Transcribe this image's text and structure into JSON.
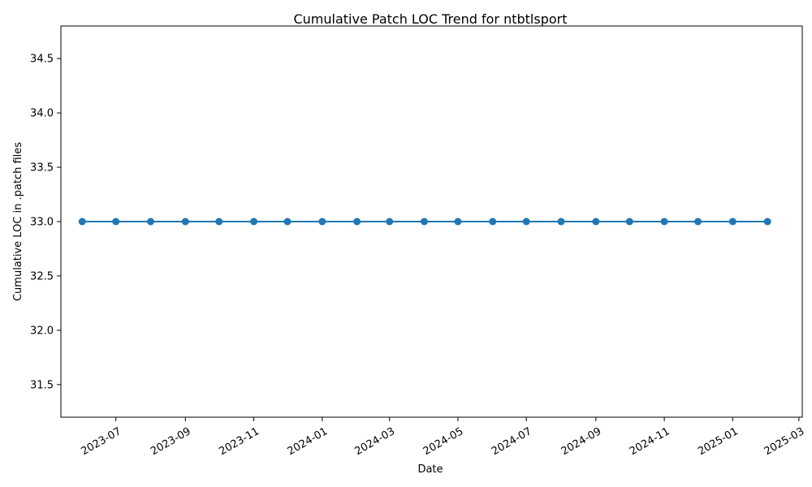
{
  "chart_data": {
    "type": "line",
    "title": "Cumulative Patch LOC Trend for ntbtlsport",
    "xlabel": "Date",
    "ylabel": "Cumulative LOC in .patch files",
    "x": [
      "2023-06-01",
      "2023-07-01",
      "2023-08-01",
      "2023-09-01",
      "2023-10-01",
      "2023-11-01",
      "2023-12-01",
      "2024-01-01",
      "2024-02-01",
      "2024-03-01",
      "2024-04-01",
      "2024-05-01",
      "2024-06-01",
      "2024-07-01",
      "2024-08-01",
      "2024-09-01",
      "2024-10-01",
      "2024-11-01",
      "2024-12-01",
      "2025-01-01",
      "2025-02-01"
    ],
    "values": [
      33,
      33,
      33,
      33,
      33,
      33,
      33,
      33,
      33,
      33,
      33,
      33,
      33,
      33,
      33,
      33,
      33,
      33,
      33,
      33,
      33
    ],
    "xlim": [
      "2023-05-13",
      "2025-03-04"
    ],
    "ylim": [
      31.2,
      34.8
    ],
    "x_ticks": [
      "2023-07-01",
      "2023-09-01",
      "2023-11-01",
      "2024-01-01",
      "2024-03-01",
      "2024-05-01",
      "2024-07-01",
      "2024-09-01",
      "2024-11-01",
      "2025-01-01",
      "2025-03-01"
    ],
    "x_tick_labels": [
      "2023-07",
      "2023-09",
      "2023-11",
      "2024-01",
      "2024-03",
      "2024-05",
      "2024-07",
      "2024-09",
      "2024-11",
      "2025-01",
      "2025-03"
    ],
    "y_ticks": [
      31.5,
      32.0,
      32.5,
      33.0,
      33.5,
      34.0,
      34.5
    ],
    "y_tick_labels": [
      "31.5",
      "32.0",
      "32.5",
      "33.0",
      "33.5",
      "34.0",
      "34.5"
    ],
    "grid": false,
    "line_color": "#1f77b4",
    "marker": "circle"
  }
}
